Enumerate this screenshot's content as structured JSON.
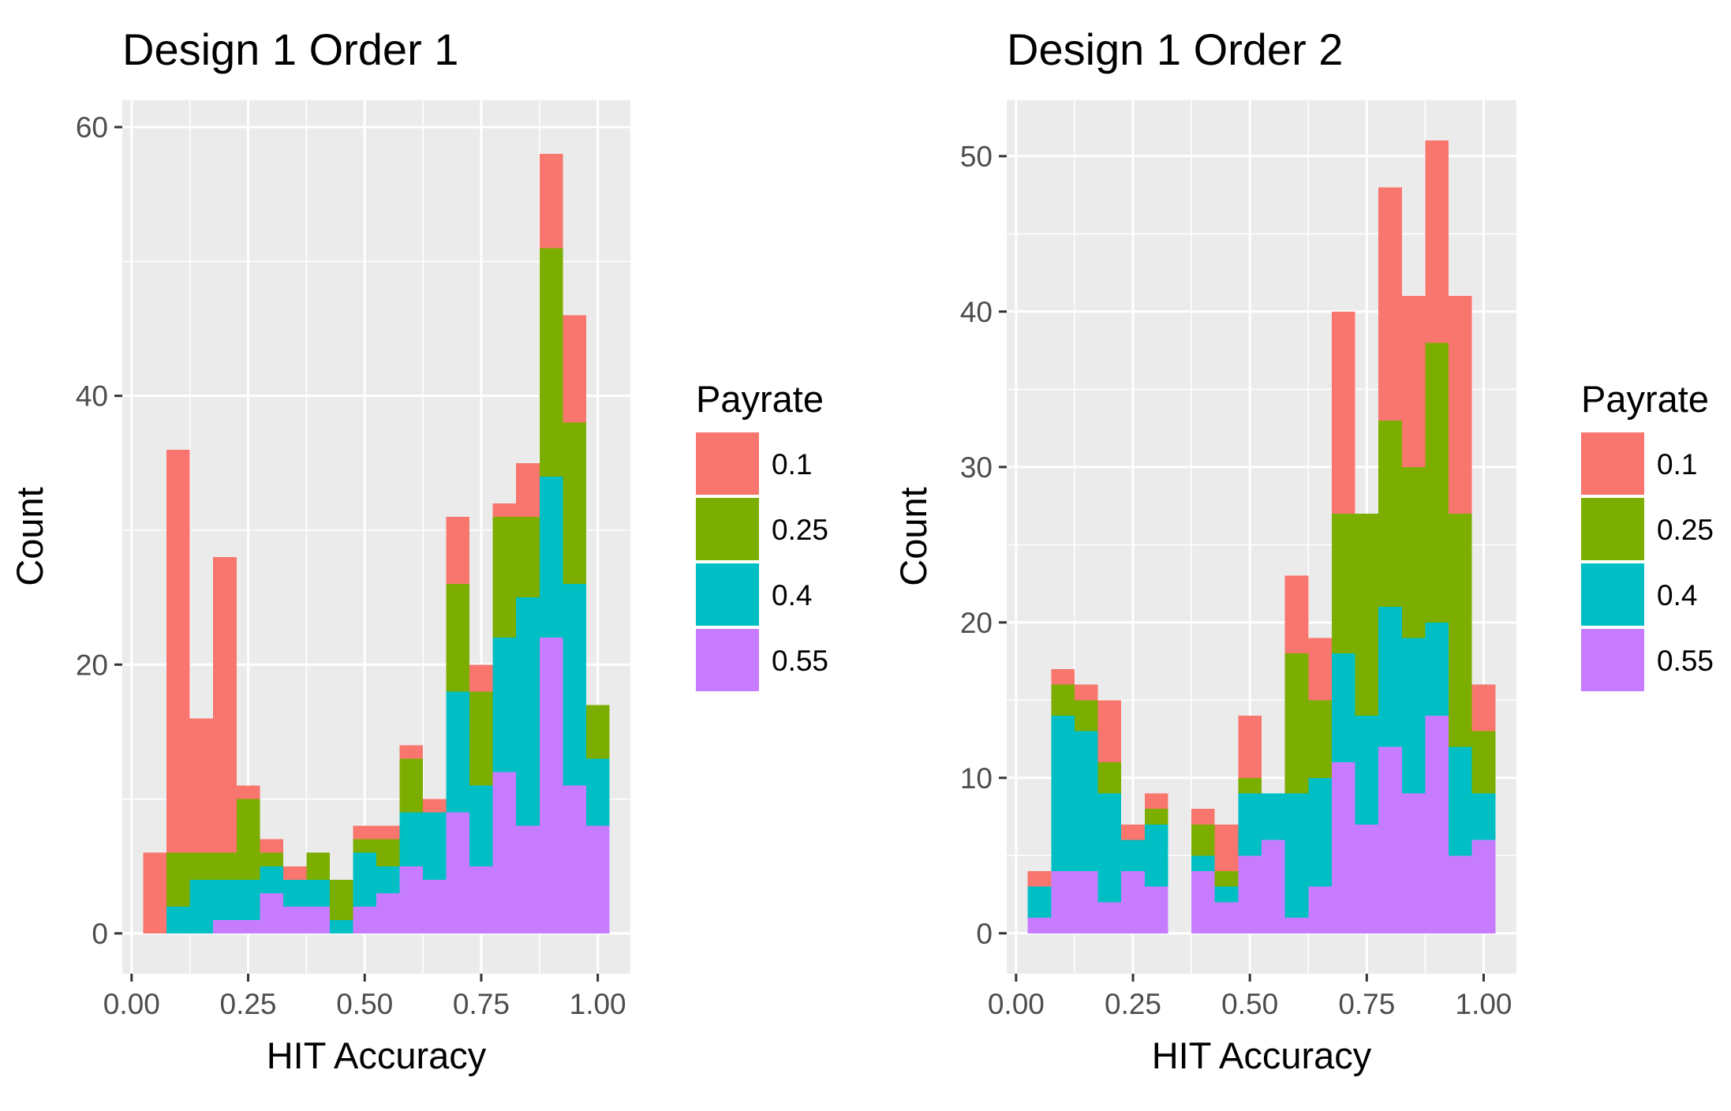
{
  "chart_data": [
    {
      "type": "bar",
      "stacking": "stacked",
      "title": "Design 1 Order 1",
      "xlabel": "HIT Accuracy",
      "ylabel": "Count",
      "xlim": [
        -0.02,
        1.07
      ],
      "ylim": [
        -3,
        62
      ],
      "xticks": [
        "0.00",
        "0.25",
        "0.50",
        "0.75",
        "1.00"
      ],
      "xtick_values": [
        0,
        0.25,
        0.5,
        0.75,
        1.0
      ],
      "yticks": [
        "0",
        "20",
        "40",
        "60"
      ],
      "ytick_values": [
        0,
        20,
        40,
        60
      ],
      "bin_width": 0.05,
      "bins": [
        0.05,
        0.1,
        0.15,
        0.2,
        0.25,
        0.3,
        0.35,
        0.4,
        0.45,
        0.5,
        0.55,
        0.6,
        0.65,
        0.7,
        0.75,
        0.8,
        0.85,
        0.9,
        0.95,
        1.0
      ],
      "grid": true,
      "legend_position": "right",
      "legend_title": "Payrate",
      "series": [
        {
          "name": "0.55",
          "color": "#C77CFF",
          "values": [
            0,
            0,
            0,
            1,
            1,
            3,
            2,
            2,
            0,
            2,
            3,
            5,
            4,
            9,
            5,
            12,
            8,
            22,
            11,
            8
          ]
        },
        {
          "name": "0.4",
          "color": "#00BFC4",
          "values": [
            0,
            2,
            4,
            3,
            3,
            2,
            2,
            2,
            1,
            4,
            2,
            4,
            5,
            9,
            6,
            10,
            17,
            12,
            15,
            5
          ]
        },
        {
          "name": "0.25",
          "color": "#7CAE00",
          "values": [
            0,
            4,
            2,
            2,
            6,
            1,
            0,
            2,
            3,
            1,
            2,
            4,
            0,
            8,
            7,
            9,
            6,
            17,
            12,
            4
          ]
        },
        {
          "name": "0.1",
          "color": "#F8766D",
          "values": [
            6,
            30,
            10,
            22,
            1,
            1,
            1,
            0,
            0,
            1,
            1,
            1,
            1,
            5,
            2,
            1,
            4,
            7,
            8,
            0
          ]
        }
      ]
    },
    {
      "type": "bar",
      "stacking": "stacked",
      "title": "Design 1 Order 2",
      "xlabel": "HIT Accuracy",
      "ylabel": "Count",
      "xlim": [
        -0.02,
        1.07
      ],
      "ylim": [
        -2.6,
        53.6
      ],
      "xticks": [
        "0.00",
        "0.25",
        "0.50",
        "0.75",
        "1.00"
      ],
      "xtick_values": [
        0,
        0.25,
        0.5,
        0.75,
        1.0
      ],
      "yticks": [
        "0",
        "10",
        "20",
        "30",
        "40",
        "50"
      ],
      "ytick_values": [
        0,
        10,
        20,
        30,
        40,
        50
      ],
      "bin_width": 0.05,
      "bins": [
        0.05,
        0.1,
        0.15,
        0.2,
        0.25,
        0.3,
        0.35,
        0.4,
        0.45,
        0.5,
        0.55,
        0.6,
        0.65,
        0.7,
        0.75,
        0.8,
        0.85,
        0.9,
        0.95,
        1.0
      ],
      "grid": true,
      "legend_position": "right",
      "legend_title": "Payrate",
      "series": [
        {
          "name": "0.55",
          "color": "#C77CFF",
          "values": [
            1,
            4,
            4,
            2,
            4,
            3,
            0,
            4,
            2,
            5,
            6,
            1,
            3,
            11,
            7,
            12,
            9,
            14,
            5,
            6
          ]
        },
        {
          "name": "0.4",
          "color": "#00BFC4",
          "values": [
            2,
            10,
            9,
            7,
            2,
            4,
            0,
            1,
            1,
            4,
            3,
            8,
            7,
            7,
            7,
            9,
            10,
            6,
            7,
            3
          ]
        },
        {
          "name": "0.25",
          "color": "#7CAE00",
          "values": [
            0,
            2,
            2,
            2,
            0,
            1,
            0,
            2,
            1,
            1,
            0,
            9,
            5,
            9,
            13,
            12,
            11,
            18,
            15,
            4
          ]
        },
        {
          "name": "0.1",
          "color": "#F8766D",
          "values": [
            1,
            1,
            1,
            4,
            1,
            1,
            0,
            1,
            3,
            4,
            0,
            5,
            4,
            13,
            0,
            15,
            11,
            13,
            14,
            3
          ]
        }
      ]
    }
  ]
}
